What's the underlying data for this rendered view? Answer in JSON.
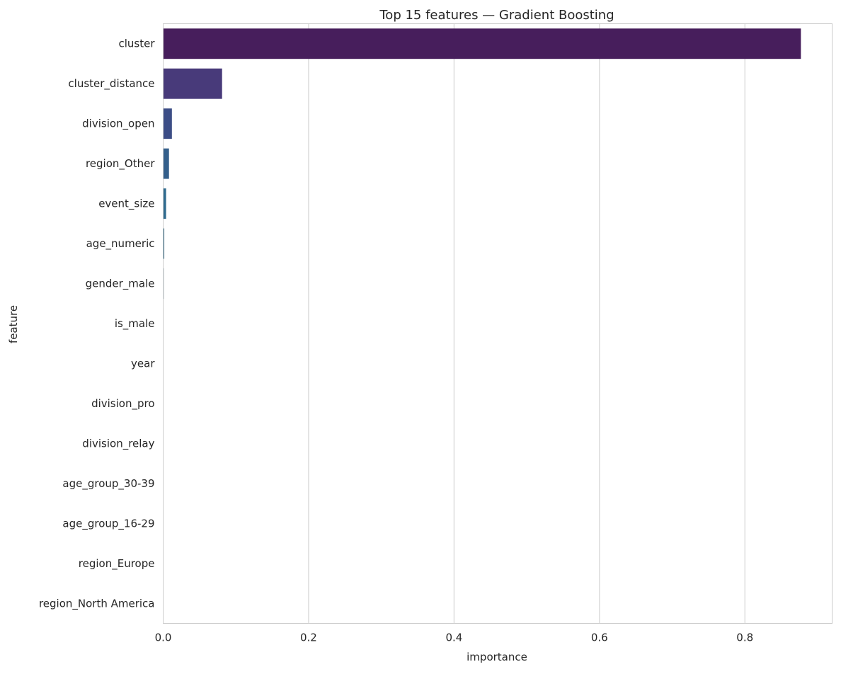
{
  "chart_data": {
    "type": "bar",
    "orientation": "horizontal",
    "title": "Top 15 features — Gradient Boosting",
    "xlabel": "importance",
    "ylabel": "feature",
    "categories": [
      "cluster",
      "cluster_distance",
      "division_open",
      "region_Other",
      "event_size",
      "age_numeric",
      "gender_male",
      "is_male",
      "year",
      "division_pro",
      "division_relay",
      "age_group_30-39",
      "age_group_16-29",
      "region_Europe",
      "region_North America"
    ],
    "values": [
      0.877,
      0.081,
      0.012,
      0.008,
      0.004,
      0.0015,
      0.0008,
      0.0005,
      0.0002,
      0.0001,
      0.0001,
      5e-05,
      5e-05,
      3e-05,
      2e-05
    ],
    "xlim": [
      0,
      0.92
    ],
    "xticks": [
      0.0,
      0.2,
      0.4,
      0.6,
      0.8
    ],
    "xtick_labels": [
      "0.0",
      "0.2",
      "0.4",
      "0.6",
      "0.8"
    ],
    "grid": "vertical",
    "palette": "viridis",
    "colors": [
      "#471e5c",
      "#483a7a",
      "#3c4d86",
      "#345f8b",
      "#2f6b8e",
      "#3b7089",
      "#6e8a93",
      "#9aa9b0",
      "#c7ced1",
      "#c7ced1",
      "#c7ced1",
      "#c7ced1",
      "#c7ced1",
      "#c7ced1",
      "#c7ced1"
    ]
  }
}
